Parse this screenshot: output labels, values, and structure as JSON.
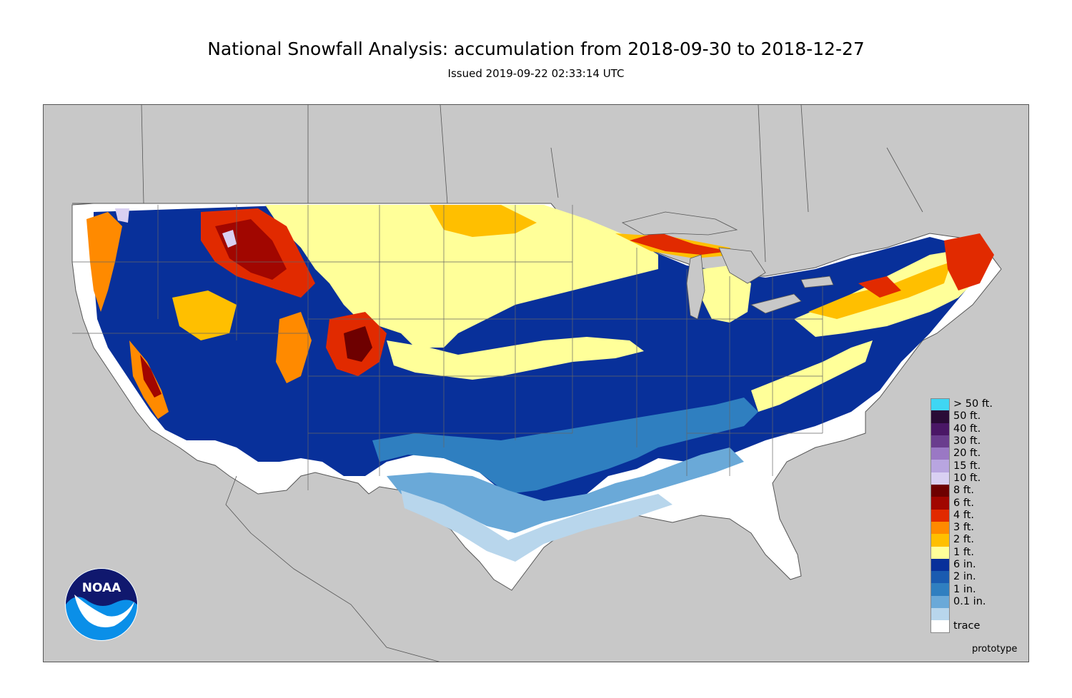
{
  "title": "National Snowfall Analysis: accumulation from 2018-09-30 to 2018-12-27",
  "subtitle": "Issued 2019-09-22 02:33:14 UTC",
  "footer_note": "prototype",
  "logo_text": "NOAA",
  "legend": [
    {
      "label": "> 50 ft.",
      "color": "#3fd6f3"
    },
    {
      "label": "50 ft.",
      "color": "#2a0b36"
    },
    {
      "label": "40 ft.",
      "color": "#4a1766"
    },
    {
      "label": "30 ft.",
      "color": "#6a3d8e"
    },
    {
      "label": "20 ft.",
      "color": "#9a78c4"
    },
    {
      "label": "15 ft.",
      "color": "#b8a5e0"
    },
    {
      "label": "10 ft.",
      "color": "#d9d0f2"
    },
    {
      "label": "8 ft.",
      "color": "#6e0000"
    },
    {
      "label": "6 ft.",
      "color": "#a10600"
    },
    {
      "label": "4 ft.",
      "color": "#e12a00"
    },
    {
      "label": "3 ft.",
      "color": "#ff8a00"
    },
    {
      "label": "2 ft.",
      "color": "#ffbf00"
    },
    {
      "label": "1 ft.",
      "color": "#ffff99"
    },
    {
      "label": "6 in.",
      "color": "#08309a"
    },
    {
      "label": "2 in.",
      "color": "#1a5bb0"
    },
    {
      "label": "1 in.",
      "color": "#2f7fc0"
    },
    {
      "label": "0.1 in.",
      "color": "#6aa9d8"
    },
    {
      "label": "",
      "color": "#b8d6ec"
    },
    {
      "label": "trace",
      "color": "#ffffff"
    }
  ],
  "colors": {
    "background_land": "#c8c8c8",
    "no_snow": "#ffffff",
    "border_lines": "#666666"
  }
}
